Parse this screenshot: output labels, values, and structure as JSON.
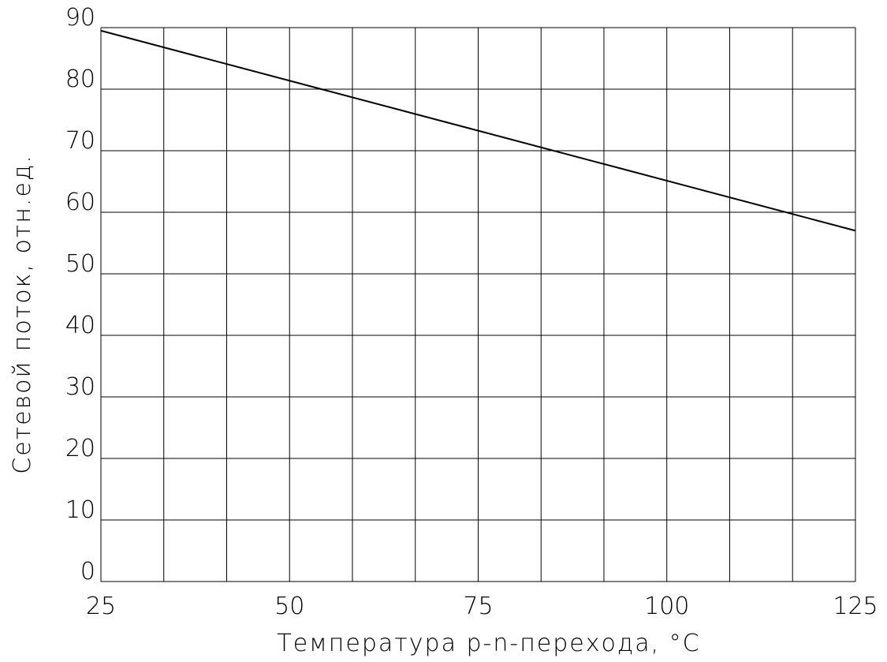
{
  "chart_data": {
    "type": "line",
    "xlabel": "Температура p-n-перехода, °C",
    "ylabel": "Сетевой поток,  отн.ед.",
    "xlim": [
      25,
      125
    ],
    "ylim": [
      0,
      90
    ],
    "x_ticks": [
      25,
      50,
      75,
      100,
      125
    ],
    "y_ticks": [
      0,
      10,
      20,
      30,
      40,
      50,
      60,
      70,
      80,
      90
    ],
    "x_tick_labels": [
      "25",
      "50",
      "75",
      "100",
      "125"
    ],
    "y_tick_labels": [
      "0",
      "10",
      "20",
      "30",
      "40",
      "50",
      "60",
      "70",
      "80",
      "90"
    ],
    "grid": true,
    "x_grid_step": 8.333,
    "series": [
      {
        "x": [
          25,
          125
        ],
        "values": [
          89.5,
          57.0
        ]
      }
    ],
    "colors": {
      "line": "#000000",
      "grid": "#000000"
    }
  }
}
